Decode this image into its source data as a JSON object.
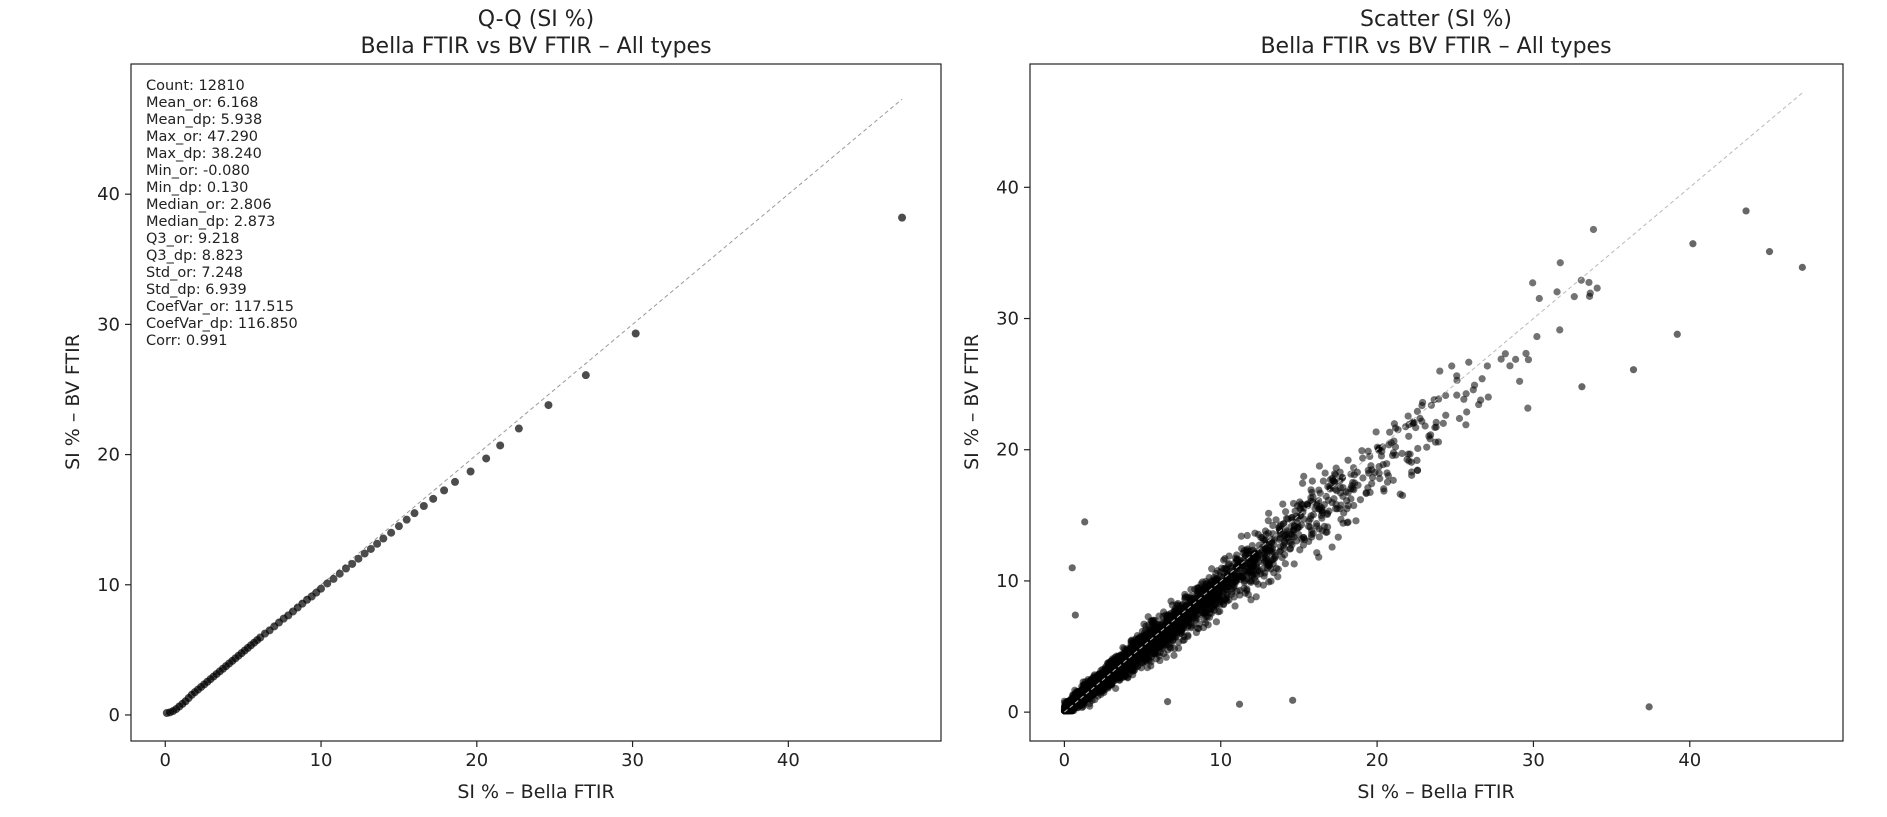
{
  "chart_data": [
    {
      "type": "scatter",
      "title": "Q-Q (SI %)",
      "subtitle": "Bella FTIR vs BV FTIR – All types",
      "xlabel": "SI % – Bella FTIR",
      "ylabel": "SI % – BV FTIR",
      "xlim": [
        -2.2,
        49.8
      ],
      "ylim": [
        -2.0,
        50.0
      ],
      "xticks": [
        0,
        10,
        20,
        30,
        40
      ],
      "yticks": [
        0,
        10,
        20,
        30,
        40
      ],
      "grid": false,
      "reference_line": {
        "from": [
          0,
          0
        ],
        "to": [
          47.3,
          47.3
        ]
      },
      "stats": [
        "Count: 12810",
        "Mean_or: 6.168",
        "Mean_dp: 5.938",
        "Max_or: 47.290",
        "Max_dp: 38.240",
        "Min_or: -0.080",
        "Min_dp: 0.130",
        "Median_or: 2.806",
        "Median_dp: 2.873",
        "Q3_or: 9.218",
        "Q3_dp: 8.823",
        "Std_or: 7.248",
        "Std_dp: 6.939",
        "CoefVar_or: 117.515",
        "CoefVar_dp: 116.850",
        "Corr: 0.991"
      ],
      "series": [
        {
          "x": [
            0.1,
            0.3,
            0.5,
            0.7,
            0.9,
            1.1,
            1.3,
            1.5,
            1.7,
            1.9,
            2.1,
            2.3,
            2.5,
            2.7,
            2.9,
            3.1,
            3.3,
            3.5,
            3.7,
            3.9,
            4.1,
            4.3,
            4.5,
            4.7,
            4.9,
            5.1,
            5.3,
            5.5,
            5.7,
            5.9,
            6.1,
            6.4,
            6.7,
            7.0,
            7.3,
            7.6,
            7.9,
            8.2,
            8.5,
            8.8,
            9.1,
            9.4,
            9.7,
            10.0,
            10.4,
            10.8,
            11.2,
            11.6,
            12.0,
            12.4,
            12.8,
            13.2,
            13.6,
            14.0,
            14.5,
            15.0,
            15.5,
            16.0,
            16.6,
            17.2,
            17.9,
            18.6,
            19.6,
            20.6,
            21.5,
            22.7,
            24.6,
            27.0,
            30.2,
            47.3
          ],
          "y": [
            0.15,
            0.2,
            0.3,
            0.45,
            0.65,
            0.85,
            1.05,
            1.3,
            1.55,
            1.75,
            1.95,
            2.15,
            2.35,
            2.55,
            2.75,
            2.95,
            3.15,
            3.35,
            3.55,
            3.75,
            3.95,
            4.15,
            4.35,
            4.55,
            4.75,
            4.95,
            5.15,
            5.35,
            5.55,
            5.75,
            5.95,
            6.25,
            6.5,
            6.8,
            7.1,
            7.4,
            7.65,
            7.95,
            8.25,
            8.55,
            8.85,
            9.1,
            9.4,
            9.7,
            10.1,
            10.45,
            10.85,
            11.25,
            11.6,
            12.0,
            12.4,
            12.75,
            13.15,
            13.55,
            14.0,
            14.5,
            15.0,
            15.5,
            16.05,
            16.6,
            17.25,
            17.9,
            18.7,
            19.7,
            20.7,
            22.0,
            23.8,
            26.1,
            29.3,
            38.2
          ]
        }
      ]
    },
    {
      "type": "scatter",
      "title": "Scatter (SI %)",
      "subtitle": "Bella FTIR vs BV FTIR – All types",
      "xlabel": "SI % – Bella FTIR",
      "ylabel": "SI % – BV FTIR",
      "xlim": [
        -2.2,
        49.8
      ],
      "ylim": [
        -2.2,
        49.4
      ],
      "xticks": [
        0,
        10,
        20,
        30,
        40
      ],
      "yticks": [
        0,
        10,
        20,
        30,
        40
      ],
      "grid": false,
      "reference_line": {
        "from": [
          0,
          0
        ],
        "to": [
          47.3,
          47.3
        ]
      },
      "point_count": 12810,
      "outliers": {
        "x": [
          1.3,
          0.5,
          0.7,
          6.6,
          11.2,
          14.6,
          37.4,
          47.2,
          45.1,
          43.6,
          40.2,
          39.2,
          36.4,
          33.1
        ],
        "y": [
          14.5,
          11.0,
          7.4,
          0.8,
          0.6,
          0.9,
          0.4,
          33.9,
          35.1,
          38.2,
          35.7,
          28.8,
          26.1,
          24.8
        ]
      }
    }
  ]
}
